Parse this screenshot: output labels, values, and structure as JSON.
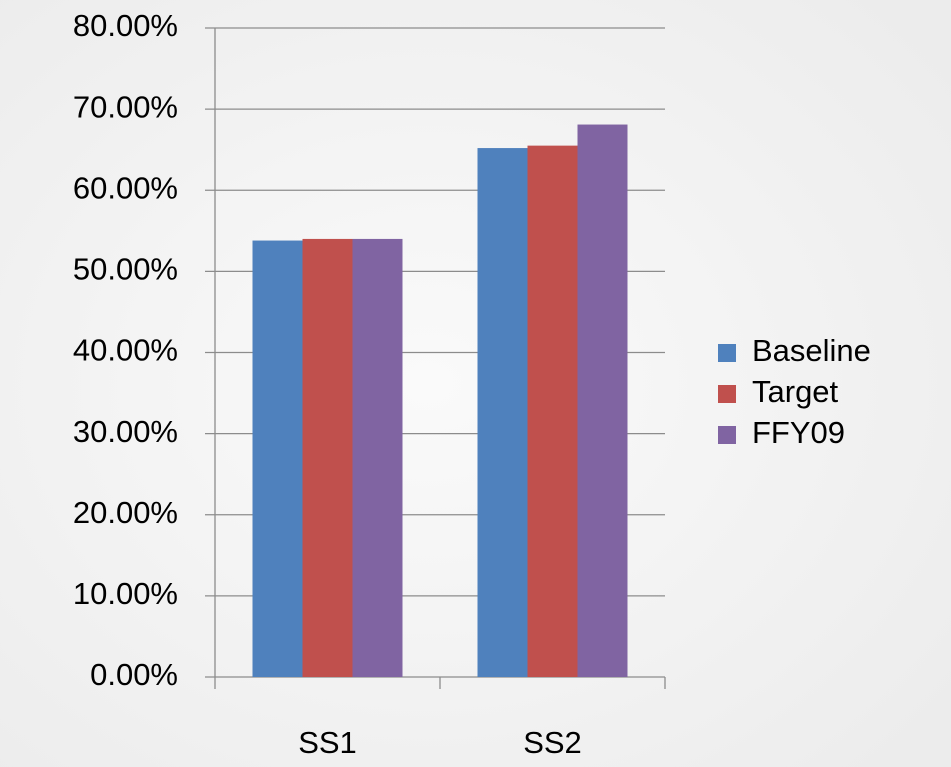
{
  "chart_data": {
    "type": "bar",
    "categories": [
      "SS1",
      "SS2"
    ],
    "series": [
      {
        "name": "Baseline",
        "color": "#4f81bd",
        "values": [
          53.8,
          65.2
        ]
      },
      {
        "name": "Target",
        "color": "#c0504d",
        "values": [
          54.0,
          65.5
        ]
      },
      {
        "name": "FFY09",
        "color": "#8064a2",
        "values": [
          54.0,
          68.1
        ]
      }
    ],
    "ylim": [
      0,
      80
    ],
    "yticks": [
      {
        "value": 0,
        "label": "0.00%"
      },
      {
        "value": 10,
        "label": "10.00%"
      },
      {
        "value": 20,
        "label": "20.00%"
      },
      {
        "value": 30,
        "label": "30.00%"
      },
      {
        "value": 40,
        "label": "40.00%"
      },
      {
        "value": 50,
        "label": "50.00%"
      },
      {
        "value": 60,
        "label": "60.00%"
      },
      {
        "value": 70,
        "label": "70.00%"
      },
      {
        "value": 80,
        "label": "80.00%"
      }
    ],
    "grid": true,
    "legend": "right"
  }
}
